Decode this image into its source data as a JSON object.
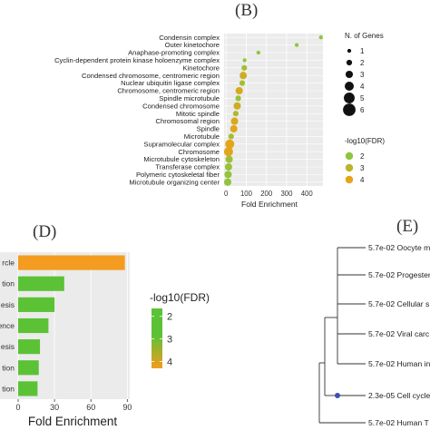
{
  "panels": {
    "b_letter": "(B)",
    "d_letter": "(D)",
    "e_letter": "(E)"
  },
  "chart_data": [
    {
      "type": "scatter",
      "panel": "B",
      "title": "",
      "xlabel": "Fold Enrichment",
      "ylabel": "",
      "xlim": [
        -10,
        480
      ],
      "xticks": [
        0,
        100,
        200,
        300,
        400
      ],
      "grid": true,
      "categories": [
        "Condensin complex",
        "Outer kinetochore",
        "Anaphase-promoting complex",
        "Cyclin-dependent protein kinase holoenzyme complex",
        "Kinetochore",
        "Condensed chromosome, centromeric region",
        "Nuclear ubiquitin ligase complex",
        "Chromosome, centromeric region",
        "Spindle microtubule",
        "Condensed chromosome",
        "Mitotic spindle",
        "Chromosomal region",
        "Spindle",
        "Microtubule",
        "Supramolecular complex",
        "Chromosome",
        "Microtubule cytoskeleton",
        "Transferase complex",
        "Polymeric cytoskeletal fiber",
        "Microtubule organizing center"
      ],
      "points": [
        {
          "x": 470,
          "genes": 1,
          "fdr": 2.0
        },
        {
          "x": 350,
          "genes": 1,
          "fdr": 2.0
        },
        {
          "x": 160,
          "genes": 1,
          "fdr": 2.0
        },
        {
          "x": 92,
          "genes": 1,
          "fdr": 2.1
        },
        {
          "x": 90,
          "genes": 2,
          "fdr": 2.6
        },
        {
          "x": 85,
          "genes": 3,
          "fdr": 3.4
        },
        {
          "x": 80,
          "genes": 2,
          "fdr": 2.5
        },
        {
          "x": 65,
          "genes": 3,
          "fdr": 3.6
        },
        {
          "x": 60,
          "genes": 2,
          "fdr": 2.2
        },
        {
          "x": 55,
          "genes": 3,
          "fdr": 3.4
        },
        {
          "x": 48,
          "genes": 2,
          "fdr": 2.8
        },
        {
          "x": 42,
          "genes": 3,
          "fdr": 3.7
        },
        {
          "x": 38,
          "genes": 3,
          "fdr": 3.8
        },
        {
          "x": 25,
          "genes": 2,
          "fdr": 2.6
        },
        {
          "x": 18,
          "genes": 4,
          "fdr": 3.9
        },
        {
          "x": 12,
          "genes": 4,
          "fdr": 3.9
        },
        {
          "x": 15,
          "genes": 3,
          "fdr": 2.4
        },
        {
          "x": 12,
          "genes": 3,
          "fdr": 2.3
        },
        {
          "x": 10,
          "genes": 3,
          "fdr": 2.2
        },
        {
          "x": 8,
          "genes": 3,
          "fdr": 2.1
        }
      ],
      "legend_size": {
        "title": "N. of Genes",
        "labels": [
          "1",
          "2",
          "3",
          "4",
          "5",
          "6"
        ],
        "values": [
          1,
          2,
          3,
          4,
          5,
          6
        ]
      },
      "legend_color": {
        "title": "-log10(FDR)",
        "labels": [
          "2",
          "3",
          "4"
        ],
        "values": [
          2,
          3,
          4
        ]
      },
      "colors": {
        "low": "#8cc63f",
        "high": "#e8a317"
      }
    },
    {
      "type": "bar",
      "panel": "D",
      "orientation": "horizontal",
      "title": "",
      "xlabel": "Fold Enrichment",
      "ylabel": "",
      "xlim": [
        0,
        92
      ],
      "xticks": [
        0,
        30,
        60,
        90
      ],
      "category_labels_visible": [
        "rcle",
        "tion",
        "esis",
        "ence",
        "esis",
        "tion",
        "tion"
      ],
      "values": [
        88,
        38,
        30,
        25,
        18,
        17,
        16
      ],
      "fdr": [
        4.1,
        2.0,
        2.0,
        2.0,
        2.0,
        2.0,
        2.0
      ],
      "legend_color": {
        "title": "-log10(FDR)",
        "labels": [
          "2",
          "3",
          "4"
        ],
        "values": [
          2,
          3,
          4
        ]
      },
      "colors": {
        "low": "#5bc236",
        "high": "#f39c1f"
      }
    },
    {
      "type": "tree",
      "panel": "E",
      "leaves": [
        "5.7e-02 Oocyte m",
        "5.7e-02 Progester",
        "5.7e-02 Cellular s",
        "5.7e-02 Viral carc",
        "5.7e-02 Human in",
        "2.3e-05 Cell cycle",
        "5.7e-02 Human T"
      ]
    }
  ]
}
